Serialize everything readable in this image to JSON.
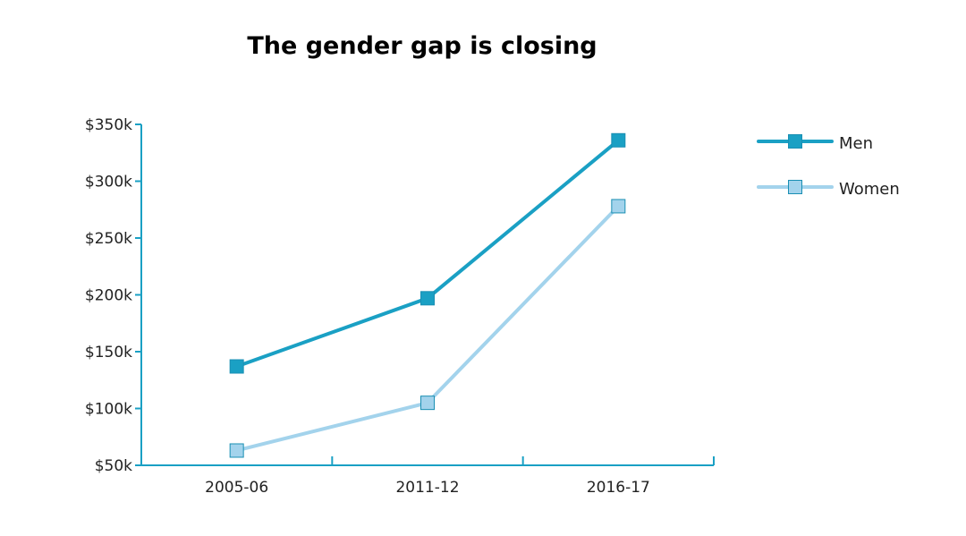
{
  "chart_data": {
    "type": "line",
    "title": "The gender gap is closing",
    "xlabel": "",
    "ylabel": "",
    "categories": [
      "2005-06",
      "2011-12",
      "2016-17"
    ],
    "y_ticks": [
      50000,
      100000,
      150000,
      200000,
      250000,
      300000,
      350000
    ],
    "y_tick_labels": [
      "$50k",
      "$100k",
      "$150k",
      "$200k",
      "$250k",
      "$300k",
      "$350k"
    ],
    "ylim": [
      50000,
      350000
    ],
    "grid": false,
    "legend_position": "top-right",
    "series": [
      {
        "name": "Men",
        "values": [
          137000,
          197000,
          336000
        ],
        "color": "#1aa0c4",
        "marker_color": "#1aa0c4"
      },
      {
        "name": "Women",
        "values": [
          63000,
          105000,
          278000
        ],
        "color": "#a3d3ec",
        "marker_color": "#a3d3ec"
      }
    ],
    "axis_color": "#1aa0c4"
  }
}
